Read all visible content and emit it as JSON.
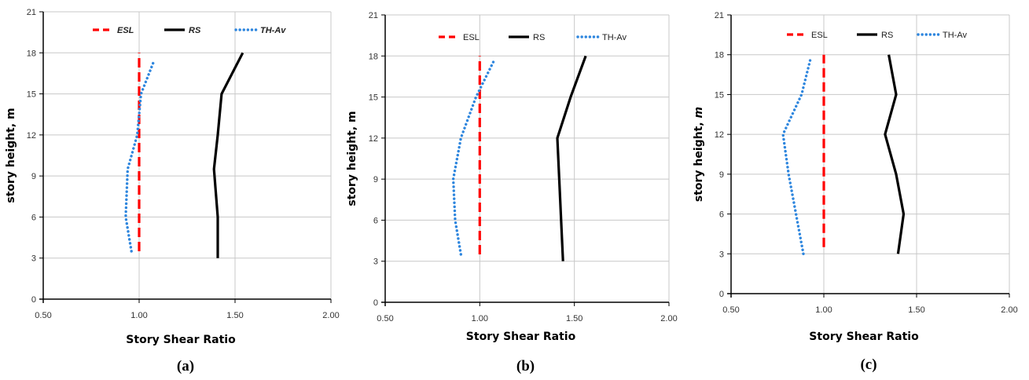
{
  "chart_data": [
    {
      "type": "line",
      "panel_label": "(a)",
      "xlabel": "Story Shear Ratio",
      "ylabel": "story height, m",
      "xlim": [
        0.5,
        2.0
      ],
      "ylim": [
        0,
        21
      ],
      "x_ticks": [
        "0.50",
        "1.00",
        "1.50",
        "2.00"
      ],
      "y_ticks": [
        "0",
        "3",
        "6",
        "9",
        "12",
        "15",
        "18",
        "21"
      ],
      "grid": true,
      "legend_position": "top",
      "legend_italic": true,
      "series": [
        {
          "name": "ESL",
          "color": "#ff0000",
          "style": "dashed",
          "points": [
            [
              1.0,
              3.5
            ],
            [
              1.0,
              18.0
            ]
          ]
        },
        {
          "name": "RS",
          "color": "#000000",
          "style": "solid",
          "points": [
            [
              1.41,
              3.0
            ],
            [
              1.41,
              6.0
            ],
            [
              1.39,
              9.5
            ],
            [
              1.41,
              12.0
            ],
            [
              1.43,
              15.0
            ],
            [
              1.54,
              18.0
            ]
          ]
        },
        {
          "name": "TH-Av",
          "color": "#2e86de",
          "style": "dotted",
          "points": [
            [
              0.96,
              3.5
            ],
            [
              0.93,
              6.0
            ],
            [
              0.94,
              9.5
            ],
            [
              0.99,
              12.0
            ],
            [
              1.01,
              15.0
            ],
            [
              1.08,
              17.5
            ]
          ]
        }
      ]
    },
    {
      "type": "line",
      "panel_label": "(b)",
      "xlabel": "Story Shear Ratio",
      "ylabel": "story height, m",
      "xlim": [
        0.5,
        2.0
      ],
      "ylim": [
        0,
        21
      ],
      "x_ticks": [
        "0.50",
        "1.00",
        "1.50",
        "2.00"
      ],
      "y_ticks": [
        "0",
        "3",
        "6",
        "9",
        "12",
        "15",
        "18",
        "21"
      ],
      "grid": true,
      "legend_position": "top",
      "legend_italic": false,
      "series": [
        {
          "name": "ESL",
          "color": "#ff0000",
          "style": "dashed",
          "points": [
            [
              1.0,
              3.5
            ],
            [
              1.0,
              18.0
            ]
          ]
        },
        {
          "name": "RS",
          "color": "#000000",
          "style": "solid",
          "points": [
            [
              1.44,
              3.0
            ],
            [
              1.43,
              6.0
            ],
            [
              1.42,
              9.0
            ],
            [
              1.41,
              12.0
            ],
            [
              1.48,
              15.0
            ],
            [
              1.56,
              18.0
            ]
          ]
        },
        {
          "name": "TH-Av",
          "color": "#2e86de",
          "style": "dotted",
          "points": [
            [
              0.9,
              3.5
            ],
            [
              0.87,
              6.0
            ],
            [
              0.86,
              9.0
            ],
            [
              0.9,
              12.0
            ],
            [
              0.98,
              15.0
            ],
            [
              1.08,
              17.8
            ]
          ]
        }
      ]
    },
    {
      "type": "line",
      "panel_label": "(c)",
      "xlabel": "Story Shear Ratio",
      "ylabel": "story height, m",
      "ylabel_unit_italic": true,
      "xlim": [
        0.5,
        2.0
      ],
      "ylim": [
        0,
        21
      ],
      "x_ticks": [
        "0.50",
        "1.00",
        "1.50",
        "2.00"
      ],
      "y_ticks": [
        "0",
        "3",
        "6",
        "9",
        "12",
        "15",
        "18",
        "21"
      ],
      "grid": true,
      "legend_position": "top",
      "legend_italic": false,
      "series": [
        {
          "name": "ESL",
          "color": "#ff0000",
          "style": "dashed",
          "points": [
            [
              1.0,
              3.5
            ],
            [
              1.0,
              18.0
            ]
          ]
        },
        {
          "name": "RS",
          "color": "#000000",
          "style": "solid",
          "points": [
            [
              1.4,
              3.0
            ],
            [
              1.43,
              6.0
            ],
            [
              1.39,
              9.0
            ],
            [
              1.33,
              12.0
            ],
            [
              1.39,
              15.0
            ],
            [
              1.35,
              18.0
            ]
          ]
        },
        {
          "name": "TH-Av",
          "color": "#2e86de",
          "style": "dotted",
          "points": [
            [
              0.89,
              3.0
            ],
            [
              0.85,
              6.0
            ],
            [
              0.81,
              9.0
            ],
            [
              0.78,
              12.0
            ],
            [
              0.88,
              15.0
            ],
            [
              0.93,
              17.8
            ]
          ]
        }
      ]
    }
  ]
}
